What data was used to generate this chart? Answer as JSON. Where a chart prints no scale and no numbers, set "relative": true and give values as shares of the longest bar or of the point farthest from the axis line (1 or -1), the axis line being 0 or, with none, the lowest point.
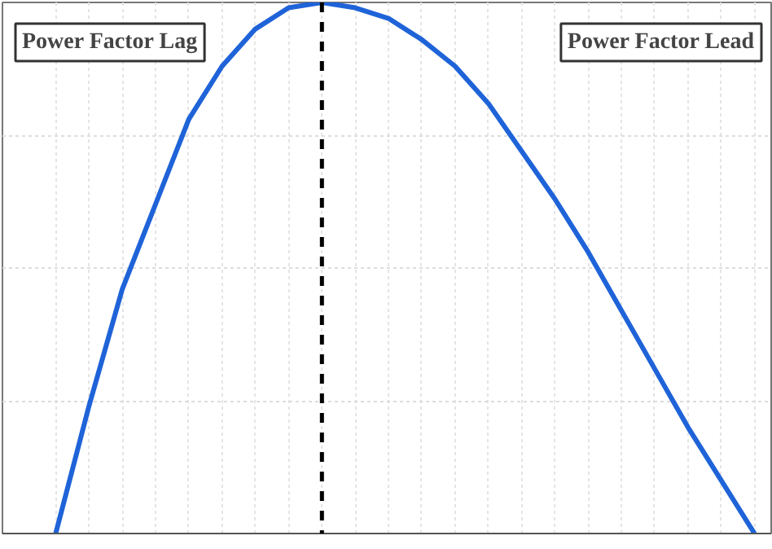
{
  "chart_data": {
    "type": "line",
    "relative": true,
    "categories": [
      null,
      null,
      null,
      null,
      null,
      null,
      null,
      null,
      null,
      null,
      null,
      null,
      null,
      null,
      null,
      null,
      null,
      null,
      null,
      null,
      null,
      null
    ],
    "series": [
      {
        "color": "#1f63d8",
        "values": [
          0,
          0.24,
          0.46,
          0.62,
          0.78,
          0.88,
          0.95,
          0.99,
          1,
          0.99,
          0.97,
          0.93,
          0.88,
          0.81,
          0.72,
          0.63,
          0.53,
          0.42,
          0.31,
          0.2,
          0.1,
          0
        ]
      }
    ],
    "grid": true,
    "line_style": "solid",
    "ref_lines": [
      {
        "axis": "x",
        "color": "#000000",
        "line_style": "dashed"
      }
    ],
    "annotations": [
      "Power Factor Lag",
      "Power Factor Lead"
    ]
  }
}
